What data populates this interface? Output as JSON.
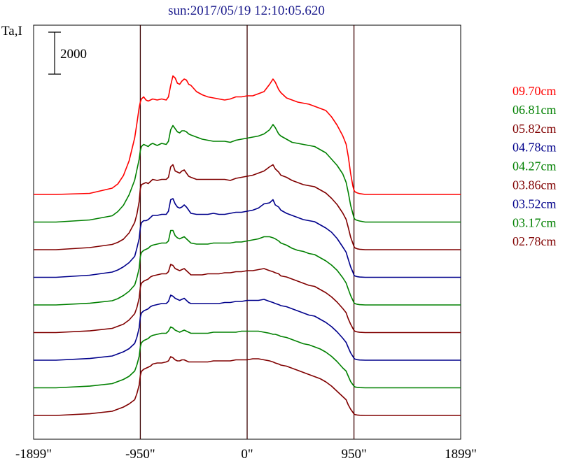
{
  "chart_data": {
    "type": "line",
    "title": "sun:2017/05/19 12:10:05.620",
    "ylabel": "Ta,I",
    "scale_bar_label": "2000",
    "xlim": [
      -1899,
      1899
    ],
    "x_ticks": [
      -1899,
      -950,
      0,
      950,
      1899
    ],
    "x_tick_labels": [
      "-1899\"",
      "-950\"",
      "0\"",
      "950\"",
      "1899\""
    ],
    "vertical_markers": [
      -950,
      0,
      950
    ],
    "grid": false,
    "legend_position": "right",
    "x": [
      -1899,
      -1700,
      -1400,
      -1200,
      -1150,
      -1100,
      -1050,
      -1000,
      -980,
      -960,
      -950,
      -940,
      -920,
      -900,
      -880,
      -860,
      -840,
      -800,
      -760,
      -720,
      -700,
      -680,
      -660,
      -640,
      -620,
      -600,
      -580,
      -560,
      -540,
      -520,
      -500,
      -450,
      -400,
      -350,
      -300,
      -250,
      -200,
      -150,
      -100,
      -50,
      0,
      50,
      100,
      150,
      200,
      230,
      250,
      280,
      300,
      350,
      400,
      450,
      500,
      550,
      600,
      650,
      700,
      750,
      800,
      850,
      880,
      900,
      920,
      940,
      950,
      960,
      980,
      1000,
      1050,
      1100,
      1200,
      1400,
      1600,
      1899
    ],
    "series": [
      {
        "name": "09.70cm",
        "color": "#ff0000",
        "values": [
          0,
          0,
          50,
          300,
          500,
          900,
          1600,
          2700,
          3400,
          4150,
          4400,
          4550,
          4650,
          4500,
          4450,
          4500,
          4550,
          4500,
          4550,
          4500,
          4650,
          5200,
          5650,
          5550,
          5300,
          5250,
          5400,
          5500,
          5450,
          5250,
          5200,
          4900,
          4750,
          4650,
          4600,
          4550,
          4500,
          4550,
          4650,
          4650,
          4700,
          4700,
          4800,
          4900,
          5250,
          5500,
          5350,
          5000,
          4850,
          4600,
          4500,
          4400,
          4350,
          4300,
          4200,
          4100,
          4000,
          3700,
          3300,
          2800,
          2400,
          1800,
          1000,
          400,
          200,
          120,
          70,
          40,
          0,
          0,
          0,
          0,
          0,
          0
        ]
      },
      {
        "name": "06.81cm",
        "color": "#008000",
        "values": [
          0,
          0,
          100,
          300,
          500,
          800,
          1300,
          2000,
          2500,
          3000,
          3400,
          3600,
          3700,
          3650,
          3600,
          3700,
          3750,
          3650,
          3750,
          3700,
          3850,
          4400,
          4600,
          4450,
          4300,
          4250,
          4350,
          4350,
          4300,
          4200,
          4150,
          4050,
          3950,
          3900,
          3850,
          3850,
          3850,
          3800,
          3900,
          3950,
          4000,
          4050,
          4100,
          4200,
          4400,
          4650,
          4500,
          4200,
          4100,
          3950,
          3800,
          3750,
          3700,
          3650,
          3600,
          3450,
          3300,
          3000,
          2700,
          2300,
          1900,
          1400,
          800,
          400,
          200,
          120,
          80,
          50,
          0,
          0,
          0,
          0,
          0,
          0
        ]
      },
      {
        "name": "05.82cm",
        "color": "#800000",
        "values": [
          0,
          0,
          100,
          250,
          350,
          500,
          800,
          1300,
          1700,
          2300,
          2900,
          3100,
          3150,
          3200,
          3150,
          3250,
          3350,
          3300,
          3350,
          3350,
          3450,
          3950,
          4050,
          3750,
          3700,
          3650,
          3750,
          3800,
          3650,
          3500,
          3450,
          3350,
          3350,
          3350,
          3350,
          3350,
          3350,
          3300,
          3400,
          3450,
          3500,
          3550,
          3650,
          3750,
          3950,
          4050,
          3850,
          3700,
          3550,
          3450,
          3300,
          3200,
          3100,
          3050,
          3000,
          2850,
          2700,
          2450,
          2150,
          1750,
          1450,
          1050,
          600,
          300,
          150,
          80,
          40,
          20,
          0,
          0,
          0,
          0,
          0,
          0
        ]
      },
      {
        "name": "04.78cm",
        "color": "#00008b",
        "values": [
          0,
          0,
          100,
          250,
          350,
          500,
          700,
          1000,
          1400,
          1850,
          2350,
          2600,
          2700,
          2700,
          2750,
          2850,
          2950,
          2950,
          3000,
          3000,
          3150,
          3700,
          3750,
          3500,
          3350,
          3300,
          3350,
          3450,
          3350,
          3200,
          3050,
          3000,
          3000,
          3000,
          3050,
          3000,
          3000,
          3050,
          3100,
          3100,
          3150,
          3200,
          3300,
          3500,
          3550,
          3700,
          3450,
          3350,
          3200,
          3050,
          2950,
          2850,
          2750,
          2700,
          2650,
          2500,
          2350,
          2150,
          1850,
          1450,
          1200,
          850,
          500,
          250,
          100,
          60,
          30,
          15,
          0,
          0,
          0,
          0,
          0,
          0
        ]
      },
      {
        "name": "04.27cm",
        "color": "#008000",
        "values": [
          0,
          0,
          80,
          200,
          300,
          450,
          650,
          950,
          1300,
          1750,
          2300,
          2500,
          2600,
          2650,
          2700,
          2800,
          2850,
          2900,
          2950,
          2950,
          3050,
          3550,
          3550,
          3300,
          3200,
          3150,
          3200,
          3250,
          3150,
          3050,
          2950,
          2900,
          2900,
          2900,
          2950,
          2950,
          2950,
          2950,
          3000,
          3000,
          3050,
          3100,
          3150,
          3250,
          3250,
          3200,
          3150,
          3050,
          2950,
          2850,
          2700,
          2600,
          2550,
          2450,
          2400,
          2250,
          2100,
          1900,
          1650,
          1300,
          1050,
          750,
          450,
          220,
          100,
          60,
          30,
          15,
          0,
          0,
          0,
          0,
          0,
          0
        ]
      },
      {
        "name": "03.86cm",
        "color": "#800000",
        "values": [
          0,
          0,
          80,
          200,
          300,
          400,
          600,
          900,
          1200,
          1650,
          2150,
          2350,
          2450,
          2500,
          2550,
          2650,
          2700,
          2750,
          2800,
          2800,
          2900,
          3250,
          3200,
          3050,
          3000,
          2950,
          3000,
          3050,
          2950,
          2850,
          2750,
          2750,
          2750,
          2800,
          2800,
          2800,
          2850,
          2850,
          2900,
          2900,
          2950,
          2950,
          3000,
          3050,
          2950,
          2900,
          2850,
          2800,
          2700,
          2650,
          2550,
          2450,
          2350,
          2250,
          2200,
          2050,
          1900,
          1700,
          1450,
          1150,
          950,
          650,
          400,
          200,
          100,
          60,
          30,
          15,
          0,
          0,
          0,
          0,
          0,
          0
        ]
      },
      {
        "name": "03.52cm",
        "color": "#00008b",
        "values": [
          0,
          0,
          80,
          200,
          300,
          400,
          550,
          800,
          1100,
          1550,
          2050,
          2250,
          2350,
          2400,
          2450,
          2550,
          2600,
          2650,
          2700,
          2700,
          2800,
          3100,
          3050,
          2950,
          2900,
          2850,
          2900,
          2950,
          2850,
          2750,
          2700,
          2700,
          2700,
          2700,
          2700,
          2700,
          2750,
          2750,
          2800,
          2800,
          2850,
          2850,
          2850,
          2900,
          2800,
          2750,
          2700,
          2650,
          2600,
          2550,
          2450,
          2350,
          2250,
          2150,
          2100,
          1950,
          1800,
          1600,
          1350,
          1050,
          850,
          600,
          350,
          180,
          90,
          50,
          25,
          10,
          0,
          0,
          0,
          0,
          0,
          0
        ]
      },
      {
        "name": "03.17cm",
        "color": "#008000",
        "values": [
          0,
          0,
          80,
          200,
          300,
          400,
          550,
          800,
          1100,
          1500,
          1950,
          2150,
          2250,
          2300,
          2350,
          2450,
          2500,
          2550,
          2600,
          2600,
          2700,
          2900,
          2850,
          2750,
          2700,
          2650,
          2700,
          2750,
          2700,
          2650,
          2600,
          2600,
          2600,
          2600,
          2650,
          2650,
          2650,
          2650,
          2650,
          2700,
          2700,
          2700,
          2700,
          2650,
          2600,
          2550,
          2550,
          2500,
          2450,
          2400,
          2300,
          2200,
          2100,
          2050,
          1950,
          1850,
          1700,
          1500,
          1250,
          950,
          800,
          550,
          300,
          150,
          80,
          40,
          20,
          10,
          0,
          0,
          0,
          0,
          0,
          0
        ]
      },
      {
        "name": "02.78cm",
        "color": "#800000",
        "values": [
          0,
          0,
          80,
          200,
          300,
          400,
          550,
          750,
          1050,
          1450,
          1900,
          2100,
          2200,
          2250,
          2300,
          2350,
          2450,
          2500,
          2500,
          2550,
          2600,
          2800,
          2750,
          2650,
          2600,
          2600,
          2650,
          2650,
          2600,
          2550,
          2550,
          2550,
          2550,
          2550,
          2600,
          2600,
          2600,
          2600,
          2650,
          2650,
          2650,
          2700,
          2700,
          2650,
          2600,
          2550,
          2500,
          2450,
          2400,
          2350,
          2250,
          2150,
          2050,
          1950,
          1850,
          1750,
          1600,
          1400,
          1150,
          900,
          750,
          500,
          300,
          150,
          70,
          40,
          20,
          10,
          0,
          0,
          0,
          0,
          0,
          0
        ]
      }
    ]
  }
}
